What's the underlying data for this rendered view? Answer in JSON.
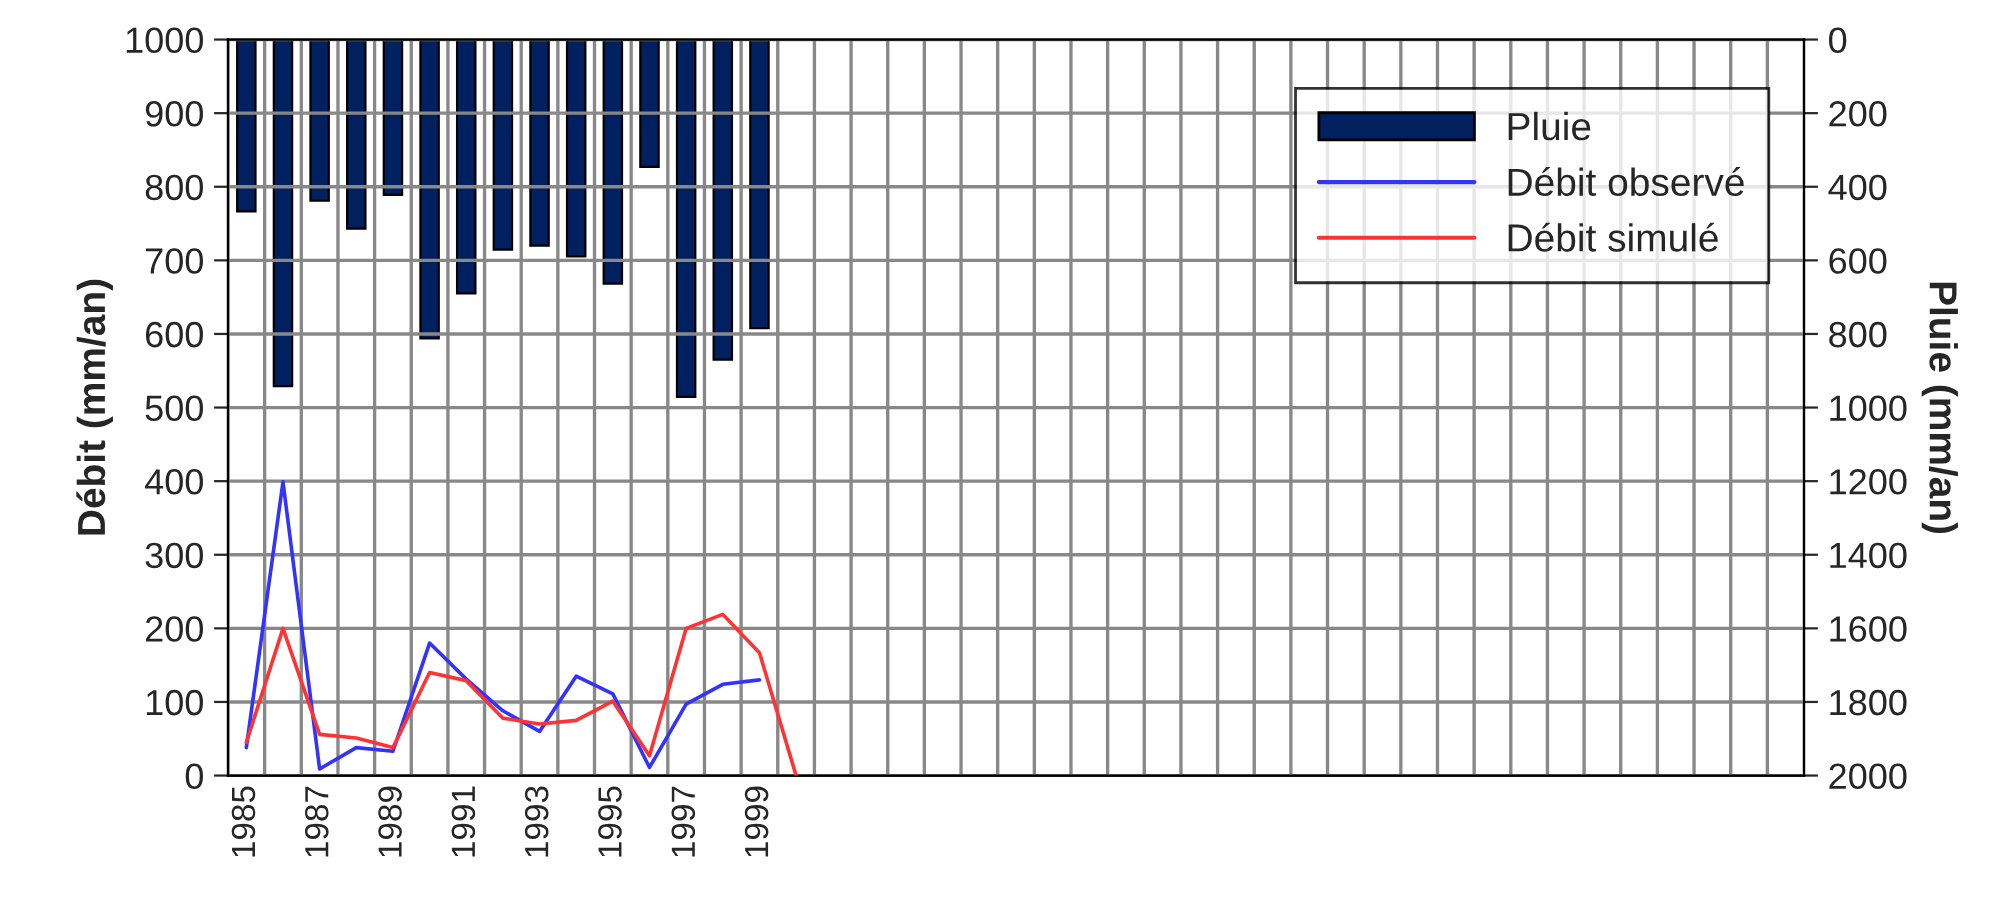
{
  "chart_data": {
    "type": "bar",
    "xlabel": null,
    "ylabel": "Débit (mm/an)",
    "y2label": "Pluie (mm/an)",
    "categories": [
      "1985",
      null,
      "1987",
      null,
      "1989",
      null,
      "1991",
      null,
      "1993",
      null,
      "1995",
      null,
      "1997",
      null,
      "1999",
      null,
      null,
      null,
      null,
      null,
      null,
      null,
      null,
      null,
      null,
      null,
      null,
      null,
      null,
      null,
      null,
      null,
      null,
      null,
      null,
      null,
      null,
      null,
      null,
      null,
      null,
      null,
      null
    ],
    "series": [
      {
        "name": "Pluie",
        "axis": "y2",
        "color": "#002060",
        "values": [
          467,
          942,
          438,
          514,
          422,
          812,
          690,
          571,
          560,
          589,
          663,
          346,
          971,
          870,
          784,
          null,
          null,
          null,
          null,
          null,
          null,
          null,
          null,
          null,
          null,
          null,
          null,
          null,
          null,
          null,
          null,
          null,
          null,
          null,
          null,
          null,
          null,
          null,
          null,
          null,
          null,
          null,
          null
        ]
      },
      {
        "name": "Débit observé",
        "type": "line",
        "color": "#3333ff",
        "values": [
          38,
          399,
          9,
          38,
          33,
          180,
          131,
          88,
          60,
          135,
          111,
          11,
          97,
          124,
          130,
          null,
          null,
          null,
          null,
          null,
          null,
          null,
          null,
          null,
          null,
          null,
          null,
          null,
          null,
          null,
          null,
          null,
          null,
          null,
          null,
          null,
          null,
          null,
          null,
          null,
          null,
          null,
          null
        ]
      },
      {
        "name": "Débit simulé",
        "type": "line",
        "color": "#ff3333",
        "values": [
          45,
          200,
          56,
          51,
          38,
          140,
          129,
          78,
          70,
          75,
          101,
          27,
          200,
          219,
          167,
          0,
          null,
          null,
          null,
          null,
          null,
          null,
          null,
          null,
          null,
          null,
          null,
          null,
          null,
          null,
          null,
          null,
          null,
          null,
          null,
          null,
          null,
          null,
          null,
          null,
          null,
          null,
          null
        ]
      }
    ],
    "ylim": [
      0,
      1000
    ],
    "yticks": [
      0,
      100,
      200,
      300,
      400,
      500,
      600,
      700,
      800,
      900,
      1000
    ],
    "y2lim": [
      2000,
      0
    ],
    "y2ticks": [
      0,
      200,
      400,
      600,
      800,
      1000,
      1200,
      1400,
      1600,
      1800,
      2000
    ],
    "grid": true,
    "legend": "top right",
    "marker": "none",
    "line_style": "solid"
  }
}
